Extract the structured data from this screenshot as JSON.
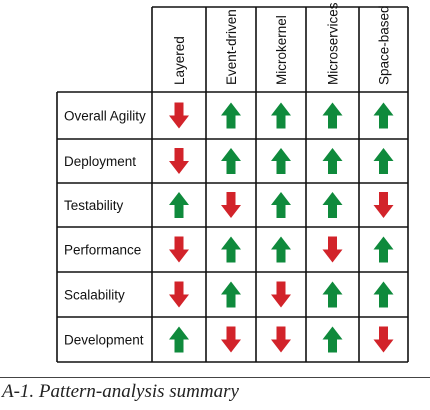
{
  "table": {
    "columns": [
      "Layered",
      "Event-driven",
      "Microkernel",
      "Microservices",
      "Space-based"
    ],
    "rows": [
      {
        "label": "Overall Agility",
        "ratings": [
          "down",
          "up",
          "up",
          "up",
          "up"
        ]
      },
      {
        "label": "Deployment",
        "ratings": [
          "down",
          "up",
          "up",
          "up",
          "up"
        ]
      },
      {
        "label": "Testability",
        "ratings": [
          "up",
          "down",
          "up",
          "up",
          "down"
        ]
      },
      {
        "label": "Performance",
        "ratings": [
          "down",
          "up",
          "up",
          "down",
          "up"
        ]
      },
      {
        "label": "Scalability",
        "ratings": [
          "down",
          "up",
          "down",
          "up",
          "up"
        ]
      },
      {
        "label": "Development",
        "ratings": [
          "up",
          "down",
          "down",
          "up",
          "down"
        ]
      }
    ],
    "colors": {
      "up": "#0f8a3c",
      "down": "#d2232a",
      "grid": "#111111",
      "text": "#111111"
    },
    "icons": {
      "up": "up-arrow-icon",
      "down": "down-arrow-icon"
    }
  },
  "caption": "A-1. Pattern-analysis summary"
}
